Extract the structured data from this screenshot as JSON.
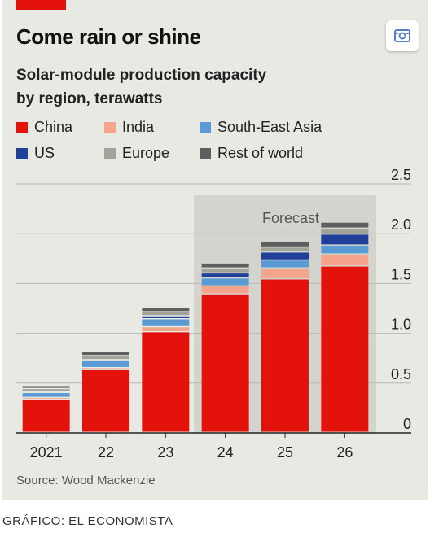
{
  "header": {
    "title": "Come rain or shine",
    "subtitle_line1": "Solar-module production capacity",
    "subtitle_line2": "by region, terawatts"
  },
  "legend": [
    {
      "name": "China",
      "color": "#e3120b"
    },
    {
      "name": "India",
      "color": "#f6a48b"
    },
    {
      "name": "South-East Asia",
      "color": "#5b9bd5"
    },
    {
      "name": "US",
      "color": "#1f3f99"
    },
    {
      "name": "Europe",
      "color": "#a3a39b"
    },
    {
      "name": "Rest of world",
      "color": "#5e5e5e"
    }
  ],
  "source": "Source: Wood Mackenzie",
  "credit": "GRÁFICO: EL ECONOMISTA",
  "icons": {
    "share": "share-icon"
  },
  "colors": {
    "accent": "#e3120b",
    "background": "#e9e9e4",
    "forecast_band": "#d4d4cf"
  },
  "chart_data": {
    "type": "bar",
    "stacked": true,
    "categories": [
      "2021",
      "22",
      "23",
      "24",
      "25",
      "26"
    ],
    "forecast_label": "Forecast",
    "forecast_categories": [
      "24",
      "25",
      "26"
    ],
    "ylim": [
      0,
      2.5
    ],
    "yticks": [
      0,
      0.5,
      1.0,
      1.5,
      2.0,
      2.5
    ],
    "ytick_labels": [
      "0",
      "0.5",
      "1.0",
      "1.5",
      "2.0",
      "2.5"
    ],
    "y_axis_position": "right",
    "grid": true,
    "series": [
      {
        "name": "China",
        "values": [
          0.33,
          0.63,
          1.01,
          1.39,
          1.54,
          1.67
        ]
      },
      {
        "name": "India",
        "values": [
          0.02,
          0.02,
          0.05,
          0.08,
          0.11,
          0.12
        ]
      },
      {
        "name": "South-East Asia",
        "values": [
          0.05,
          0.07,
          0.08,
          0.08,
          0.08,
          0.09
        ]
      },
      {
        "name": "US",
        "values": [
          0.01,
          0.01,
          0.03,
          0.05,
          0.08,
          0.11
        ]
      },
      {
        "name": "Europe",
        "values": [
          0.03,
          0.04,
          0.04,
          0.05,
          0.05,
          0.06
        ]
      },
      {
        "name": "Rest of world",
        "values": [
          0.03,
          0.04,
          0.04,
          0.05,
          0.06,
          0.06
        ]
      }
    ]
  }
}
